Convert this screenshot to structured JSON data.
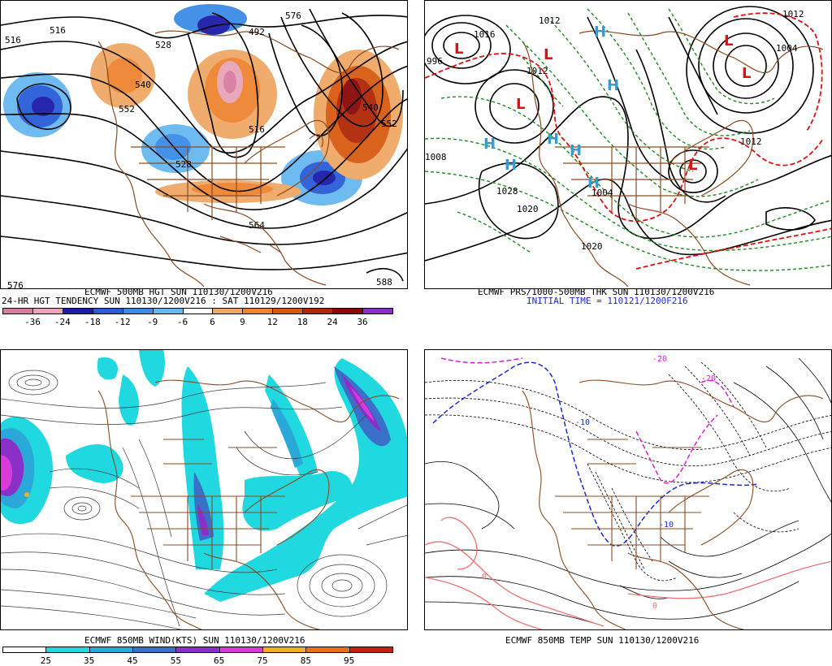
{
  "panel1": {
    "title": "ECMWF 500MB HGT SUN 110130/1200V216",
    "subtitle": "24-HR HGT TENDENCY SUN 110130/1200V216 : SAT 110129/1200V192",
    "contour_labels": [
      "516",
      "528",
      "540",
      "552",
      "492",
      "516",
      "528",
      "540",
      "552",
      "564",
      "576",
      "588",
      "576",
      "516"
    ],
    "colorbar": {
      "labels": [
        "-36",
        "-24",
        "-18",
        "-12",
        "-9",
        "-6",
        "6",
        "9",
        "12",
        "18",
        "24",
        "36"
      ],
      "colors": [
        "#d97ca2",
        "#e8a5b8",
        "#1c1ca8",
        "#2a5cd8",
        "#3c8ce6",
        "#66b8f0",
        "#ffffff",
        "#f0a866",
        "#ee8430",
        "#d85a10",
        "#b02808",
        "#8a0808",
        "#8a30c8"
      ]
    }
  },
  "panel2": {
    "title": "ECMWF PRS/1000-500MB THK SUN 110130/1200V216",
    "subtitle": "INITIAL TIME = 110121/1200F216",
    "pressure_labels": [
      "1012",
      "1012",
      "1016",
      "1020",
      "1028",
      "1020",
      "1012",
      "1004",
      "1004",
      "1008",
      "996",
      "1012"
    ],
    "centers": [
      "L",
      "L",
      "L",
      "L",
      "L",
      "H",
      "H",
      "H",
      "H",
      "H",
      "H",
      "H",
      "L"
    ]
  },
  "panel3": {
    "title": "ECMWF 850MB WIND(KTS) SUN 110130/1200V216",
    "colorbar": {
      "labels": [
        "25",
        "35",
        "45",
        "55",
        "65",
        "75",
        "85",
        "95"
      ],
      "colors": [
        "#ffffff",
        "#20d8e0",
        "#2aa8d8",
        "#3a70c8",
        "#8a30c8",
        "#d83cd8",
        "#f0b020",
        "#e87018",
        "#c82010"
      ]
    }
  },
  "panel4": {
    "title": "ECMWF 850MB TEMP SUN 110130/1200V216",
    "contour_labels": [
      "-10",
      "-10",
      "-20",
      "-20",
      "0",
      "0"
    ]
  }
}
